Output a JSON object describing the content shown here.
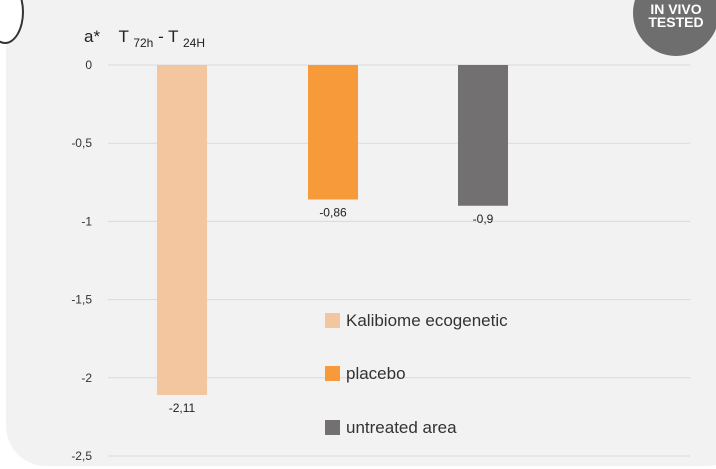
{
  "badge": {
    "line1": "IN VIVO",
    "line2": "TESTED"
  },
  "chart_data": {
    "type": "bar",
    "ylabel_parts": {
      "a": "a*",
      "t1": "T",
      "s1": "72h",
      "mid": "- T",
      "s2": "24H"
    },
    "ylim": [
      -2.5,
      0
    ],
    "yticks": [
      0,
      -0.5,
      -1,
      -1.5,
      -2,
      -2.5
    ],
    "ytick_labels": [
      "0",
      "-0,5",
      "-1",
      "-1,5",
      "-2",
      "-2,5"
    ],
    "grid": true,
    "legend_position": "bottom-right",
    "series": [
      {
        "name": "Kalibiome ecogenetic",
        "value": -2.11,
        "label": "-2,11",
        "color": "#f3c6a0"
      },
      {
        "name": "placebo",
        "value": -0.86,
        "label": "-0,86",
        "color": "#f79a3a"
      },
      {
        "name": "untreated area",
        "value": -0.9,
        "label": "-0,9",
        "color": "#727070"
      }
    ]
  }
}
